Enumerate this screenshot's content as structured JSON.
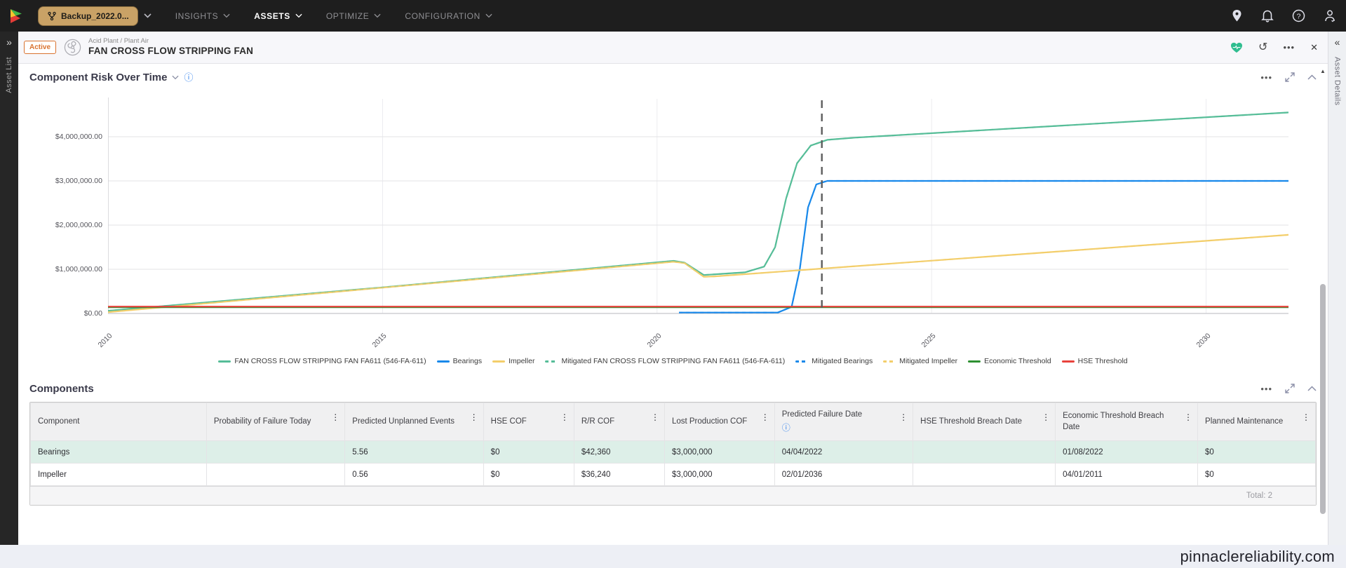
{
  "nav": {
    "workspace": {
      "label": "Backup_2022.0..."
    },
    "menu": [
      {
        "id": "insights",
        "label": "INSIGHTS",
        "active": false
      },
      {
        "id": "assets",
        "label": "ASSETS",
        "active": true
      },
      {
        "id": "optimize",
        "label": "OPTIMIZE",
        "active": false
      },
      {
        "id": "configuration",
        "label": "CONFIGURATION",
        "active": false
      }
    ],
    "right_icons": [
      "location-icon",
      "notifications-icon",
      "help-icon",
      "user-icon"
    ]
  },
  "rails": {
    "left": "Asset List",
    "right": "Asset Details"
  },
  "asset_header": {
    "status": "Active",
    "breadcrumb": "Acid Plant / Plant Air",
    "title": "FAN CROSS FLOW STRIPPING FAN",
    "icons": [
      "fan-icon",
      "health-heart-icon",
      "undo-icon",
      "more-icon",
      "close-icon"
    ]
  },
  "risk_panel": {
    "title": "Component Risk Over Time"
  },
  "chart_data": {
    "type": "line",
    "title": "Component Risk Over Time",
    "x_range": [
      2010,
      2031.5
    ],
    "x_ticks": [
      2010,
      2015,
      2020,
      2025,
      2030
    ],
    "y_axis_labels": [
      {
        "value": 4000000,
        "label": "$4,000,000.00"
      },
      {
        "value": 3000000,
        "label": "$3,000,000.00"
      },
      {
        "value": 2000000,
        "label": "$2,000,000.00"
      },
      {
        "value": 1000000,
        "label": "$1,000,000.00"
      },
      {
        "value": 0,
        "label": "$0.00"
      }
    ],
    "y_range": [
      0,
      4750000
    ],
    "grid": true,
    "legend_position": "bottom",
    "today_marker_year": 2023,
    "series": [
      {
        "name": "FAN CROSS FLOW STRIPPING FAN FA611 (546-FA-611)",
        "color": "#56BD98",
        "dashed": false,
        "points": [
          [
            2010,
            60000
          ],
          [
            2015,
            590000
          ],
          [
            2020.3,
            1190000
          ],
          [
            2020.5,
            1150000
          ],
          [
            2020.85,
            870000
          ],
          [
            2021.6,
            930000
          ],
          [
            2021.95,
            1060000
          ],
          [
            2022.15,
            1500000
          ],
          [
            2022.35,
            2600000
          ],
          [
            2022.55,
            3400000
          ],
          [
            2022.8,
            3800000
          ],
          [
            2023.1,
            3930000
          ],
          [
            2023.6,
            3980000
          ],
          [
            2031.5,
            4550000
          ]
        ]
      },
      {
        "name": "Bearings",
        "color": "#1989EA",
        "dashed": false,
        "points": [
          [
            2020.4,
            20000
          ],
          [
            2022.2,
            20000
          ],
          [
            2022.45,
            150000
          ],
          [
            2022.6,
            1000000
          ],
          [
            2022.75,
            2400000
          ],
          [
            2022.9,
            2920000
          ],
          [
            2023.1,
            3000000
          ],
          [
            2031.5,
            3000000
          ]
        ]
      },
      {
        "name": "Impeller",
        "color": "#F3CE6B",
        "dashed": false,
        "points": [
          [
            2010,
            30000
          ],
          [
            2020.3,
            1170000
          ],
          [
            2020.5,
            1140000
          ],
          [
            2020.85,
            830000
          ],
          [
            2021.05,
            840000
          ],
          [
            2031.5,
            1780000
          ]
        ]
      },
      {
        "name": "Mitigated FAN CROSS FLOW STRIPPING FAN FA611 (546-FA-611)",
        "color": "#56BD98",
        "dashed": true,
        "points_same_as": "FAN CROSS FLOW STRIPPING FAN FA611 (546-FA-611)"
      },
      {
        "name": "Mitigated Bearings",
        "color": "#1989EA",
        "dashed": true,
        "points_same_as": "Bearings"
      },
      {
        "name": "Mitigated Impeller",
        "color": "#F3CE6B",
        "dashed": true,
        "points_same_as": "Impeller"
      },
      {
        "name": "Economic Threshold",
        "color": "#2E9032",
        "dashed": false,
        "points": [
          [
            2010,
            140000
          ],
          [
            2031.5,
            140000
          ]
        ]
      },
      {
        "name": "HSE Threshold",
        "color": "#E8423C",
        "dashed": false,
        "points": [
          [
            2010,
            155000
          ],
          [
            2031.5,
            155000
          ]
        ]
      }
    ]
  },
  "components_panel": {
    "title": "Components",
    "columns": [
      {
        "label": "Component",
        "menu": false,
        "info": false
      },
      {
        "label": "Probability of Failure Today",
        "menu": true,
        "info": false
      },
      {
        "label": "Predicted Unplanned Events",
        "menu": true,
        "info": false
      },
      {
        "label": "HSE COF",
        "menu": true,
        "info": false
      },
      {
        "label": "R/R COF",
        "menu": true,
        "info": false
      },
      {
        "label": "Lost Production COF",
        "menu": true,
        "info": false
      },
      {
        "label": "Predicted Failure Date",
        "menu": true,
        "info": true
      },
      {
        "label": "HSE Threshold Breach Date",
        "menu": true,
        "info": false
      },
      {
        "label": "Economic Threshold Breach Date",
        "menu": true,
        "info": false
      },
      {
        "label": "Planned Maintenance",
        "menu": true,
        "info": false
      }
    ],
    "rows": [
      {
        "highlighted": true,
        "cells": [
          "Bearings",
          "",
          "5.56",
          "$0",
          "$42,360",
          "$3,000,000",
          "04/04/2022",
          "",
          "01/08/2022",
          "$0"
        ]
      },
      {
        "highlighted": false,
        "cells": [
          "Impeller",
          "",
          "0.56",
          "$0",
          "$36,240",
          "$3,000,000",
          "02/01/2036",
          "",
          "04/01/2011",
          "$0"
        ]
      }
    ],
    "footer": "Total: 2"
  },
  "footer": {
    "watermark": "pinnaclereliability.com"
  },
  "colors": {
    "nav_bg": "#1E1E1E",
    "workspace_pill": "#C9A266",
    "active_badge": "#D9722F",
    "row_highlight": "#DDEFE8",
    "teal": "#56BD98",
    "blue": "#1989EA",
    "yellow": "#F3CE6B",
    "green": "#2E9032",
    "red": "#E8423C",
    "info_blue": "#2F80ED"
  }
}
